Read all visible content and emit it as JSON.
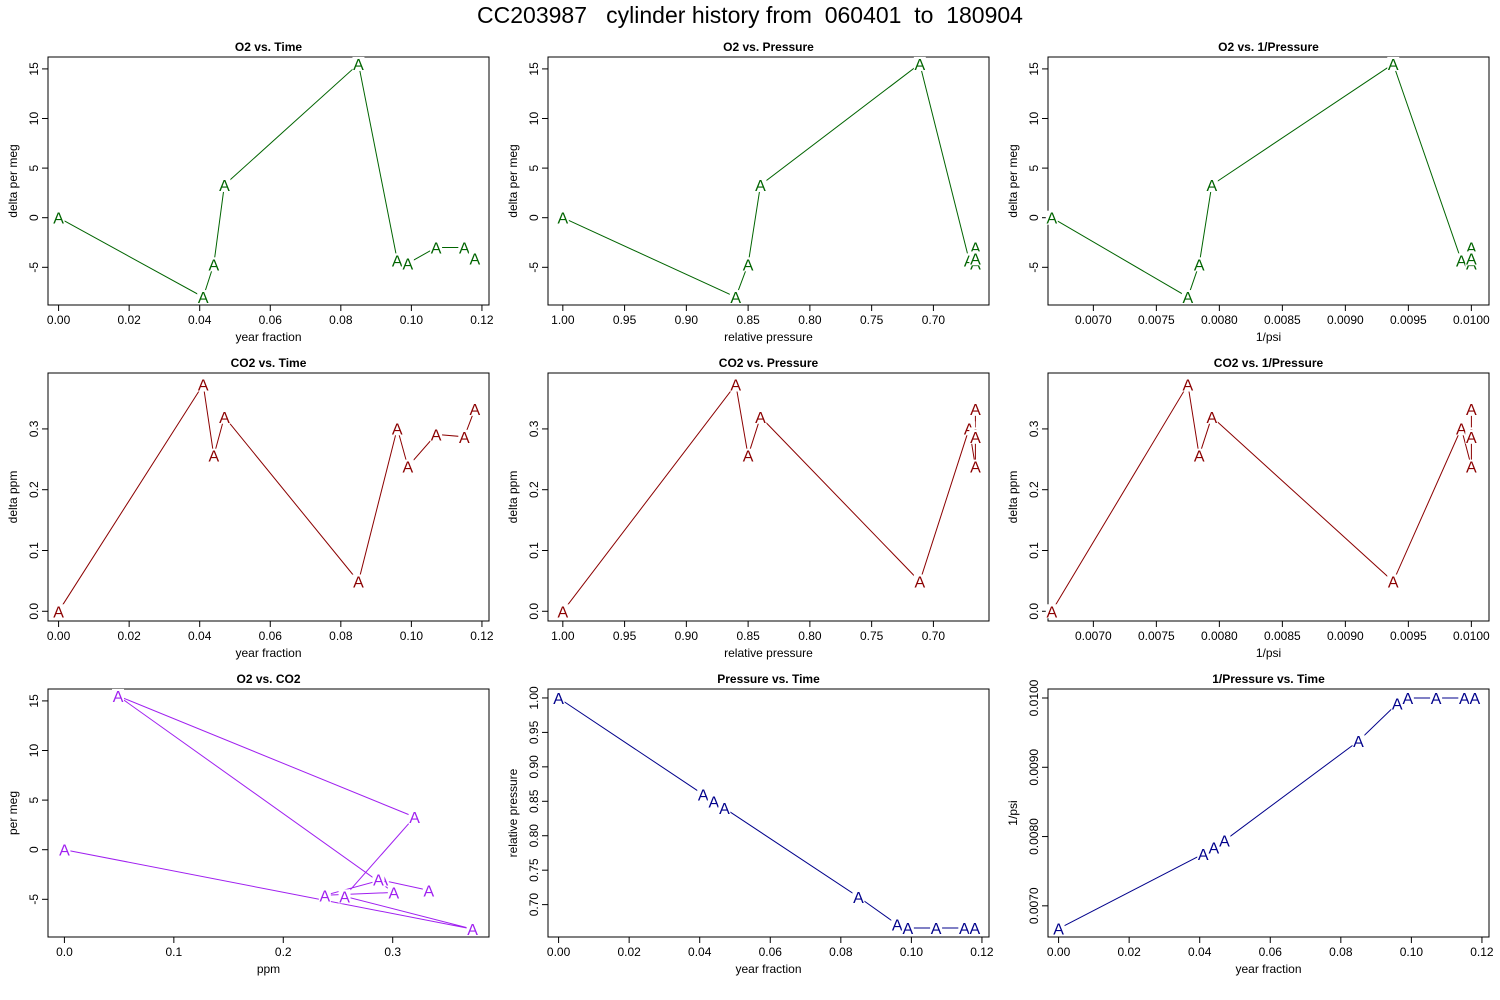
{
  "title": "CC203987   cylinder history from  060401  to  180904",
  "colors": {
    "o2": "#006400",
    "co2": "#8b0000",
    "o2co2": "#a020f0",
    "pressure": "#00008b"
  },
  "marker": "A",
  "chart_data": [
    {
      "type": "line",
      "title": "O2 vs. Time",
      "xlabel": "year fraction",
      "ylabel": "delta per meg",
      "color_key": "o2",
      "xlim": [
        -0.003,
        0.122
      ],
      "ylim": [
        -8.8,
        16.2
      ],
      "xticks": [
        0,
        0.02,
        0.04,
        0.06,
        0.08,
        0.1,
        0.12
      ],
      "xtick_labels": [
        "0.00",
        "0.02",
        "0.04",
        "0.06",
        "0.08",
        "0.10",
        "0.12"
      ],
      "yticks": [
        -5,
        0,
        5,
        10,
        15
      ],
      "ytick_labels": [
        "-5",
        "0",
        "5",
        "10",
        "15"
      ],
      "x": [
        0,
        0.041,
        0.044,
        0.047,
        0.085,
        0.096,
        0.099,
        0.107,
        0.115,
        0.118
      ],
      "y": [
        0,
        -8,
        -4.7,
        3.3,
        15.5,
        -4.3,
        -4.6,
        -3,
        -3,
        -4.1
      ]
    },
    {
      "type": "line",
      "title": "O2 vs. Pressure",
      "xlabel": "relative pressure",
      "ylabel": "delta per meg",
      "color_key": "o2",
      "x_reversed": true,
      "xlim": [
        1.012,
        0.655
      ],
      "ylim": [
        -8.8,
        16.2
      ],
      "xticks": [
        1.0,
        0.95,
        0.9,
        0.85,
        0.8,
        0.75,
        0.7
      ],
      "xtick_labels": [
        "1.00",
        "0.95",
        "0.90",
        "0.85",
        "0.80",
        "0.75",
        "0.70"
      ],
      "yticks": [
        -5,
        0,
        5,
        10,
        15
      ],
      "ytick_labels": [
        "-5",
        "0",
        "5",
        "10",
        "15"
      ],
      "x": [
        1.0,
        0.86,
        0.85,
        0.84,
        0.711,
        0.671,
        0.666,
        0.666,
        0.666,
        0.666
      ],
      "y": [
        0,
        -8,
        -4.7,
        3.3,
        15.5,
        -4.3,
        -4.6,
        -3,
        -3,
        -4.1
      ],
      "draw_order": [
        0,
        1,
        2,
        3,
        4,
        5,
        6,
        9,
        8,
        7
      ]
    },
    {
      "type": "line",
      "title": "O2 vs. 1/Pressure",
      "xlabel": "1/psi",
      "ylabel": "delta per meg",
      "color_key": "o2",
      "xlim": [
        0.00664,
        0.01014
      ],
      "ylim": [
        -8.8,
        16.2
      ],
      "xticks": [
        0.007,
        0.0075,
        0.008,
        0.0085,
        0.009,
        0.0095,
        0.01
      ],
      "xtick_labels": [
        "0.0070",
        "0.0075",
        "0.0080",
        "0.0085",
        "0.0090",
        "0.0095",
        "0.0100"
      ],
      "yticks": [
        -5,
        0,
        5,
        10,
        15
      ],
      "ytick_labels": [
        "-5",
        "0",
        "5",
        "10",
        "15"
      ],
      "x": [
        0.00667,
        0.00775,
        0.00784,
        0.00794,
        0.00938,
        0.00992,
        0.01,
        0.01,
        0.01,
        0.01
      ],
      "y": [
        0,
        -8,
        -4.7,
        3.3,
        15.5,
        -4.3,
        -4.6,
        -3,
        -3,
        -4.1
      ],
      "draw_order": [
        0,
        1,
        2,
        3,
        4,
        5,
        6,
        9,
        8,
        7
      ]
    },
    {
      "type": "line",
      "title": "CO2 vs. Time",
      "xlabel": "year fraction",
      "ylabel": "delta ppm",
      "color_key": "co2",
      "xlim": [
        -0.003,
        0.122
      ],
      "ylim": [
        -0.016,
        0.392
      ],
      "xticks": [
        0,
        0.02,
        0.04,
        0.06,
        0.08,
        0.1,
        0.12
      ],
      "xtick_labels": [
        "0.00",
        "0.02",
        "0.04",
        "0.06",
        "0.08",
        "0.10",
        "0.12"
      ],
      "yticks": [
        0,
        0.1,
        0.2,
        0.3
      ],
      "ytick_labels": [
        "0.0",
        "0.1",
        "0.2",
        "0.3"
      ],
      "x": [
        0,
        0.041,
        0.044,
        0.047,
        0.085,
        0.096,
        0.099,
        0.107,
        0.115,
        0.118
      ],
      "y": [
        0,
        0.373,
        0.256,
        0.32,
        0.049,
        0.301,
        0.238,
        0.291,
        0.287,
        0.333
      ]
    },
    {
      "type": "line",
      "title": "CO2 vs. Pressure",
      "xlabel": "relative pressure",
      "ylabel": "delta ppm",
      "color_key": "co2",
      "x_reversed": true,
      "xlim": [
        1.012,
        0.655
      ],
      "ylim": [
        -0.016,
        0.392
      ],
      "xticks": [
        1.0,
        0.95,
        0.9,
        0.85,
        0.8,
        0.75,
        0.7
      ],
      "xtick_labels": [
        "1.00",
        "0.95",
        "0.90",
        "0.85",
        "0.80",
        "0.75",
        "0.70"
      ],
      "yticks": [
        0,
        0.1,
        0.2,
        0.3
      ],
      "ytick_labels": [
        "0.0",
        "0.1",
        "0.2",
        "0.3"
      ],
      "x": [
        1.0,
        0.86,
        0.85,
        0.84,
        0.711,
        0.671,
        0.666,
        0.666,
        0.666,
        0.666
      ],
      "y": [
        0,
        0.373,
        0.256,
        0.32,
        0.049,
        0.301,
        0.238,
        0.291,
        0.287,
        0.333
      ],
      "draw_order": [
        0,
        1,
        2,
        3,
        4,
        5,
        6,
        9,
        8,
        7
      ]
    },
    {
      "type": "line",
      "title": "CO2 vs. 1/Pressure",
      "xlabel": "1/psi",
      "ylabel": "delta ppm",
      "color_key": "co2",
      "xlim": [
        0.00664,
        0.01014
      ],
      "ylim": [
        -0.016,
        0.392
      ],
      "xticks": [
        0.007,
        0.0075,
        0.008,
        0.0085,
        0.009,
        0.0095,
        0.01
      ],
      "xtick_labels": [
        "0.0070",
        "0.0075",
        "0.0080",
        "0.0085",
        "0.0090",
        "0.0095",
        "0.0100"
      ],
      "yticks": [
        0,
        0.1,
        0.2,
        0.3
      ],
      "ytick_labels": [
        "0.0",
        "0.1",
        "0.2",
        "0.3"
      ],
      "x": [
        0.00667,
        0.00775,
        0.00784,
        0.00794,
        0.00938,
        0.00992,
        0.01,
        0.01,
        0.01,
        0.01
      ],
      "y": [
        0,
        0.373,
        0.256,
        0.32,
        0.049,
        0.301,
        0.238,
        0.291,
        0.287,
        0.333
      ],
      "draw_order": [
        0,
        1,
        2,
        3,
        4,
        5,
        6,
        9,
        8,
        7
      ]
    },
    {
      "type": "line",
      "title": "O2 vs. CO2",
      "xlabel": "ppm",
      "ylabel": "per meg",
      "color_key": "o2co2",
      "xlim": [
        -0.015,
        0.388
      ],
      "ylim": [
        -8.8,
        16.2
      ],
      "xticks": [
        0,
        0.1,
        0.2,
        0.3
      ],
      "xtick_labels": [
        "0.0",
        "0.1",
        "0.2",
        "0.3"
      ],
      "yticks": [
        -5,
        0,
        5,
        10,
        15
      ],
      "ytick_labels": [
        "-5",
        "0",
        "5",
        "10",
        "15"
      ],
      "x": [
        0,
        0.373,
        0.256,
        0.32,
        0.049,
        0.301,
        0.238,
        0.291,
        0.287,
        0.333
      ],
      "y": [
        0,
        -8,
        -4.7,
        3.3,
        15.5,
        -4.3,
        -4.6,
        -3,
        -3,
        -4.1
      ]
    },
    {
      "type": "line",
      "title": "Pressure vs. Time",
      "xlabel": "year fraction",
      "ylabel": "relative pressure",
      "color_key": "pressure",
      "xlim": [
        -0.003,
        0.122
      ],
      "ylim": [
        0.653,
        1.013
      ],
      "xticks": [
        0,
        0.02,
        0.04,
        0.06,
        0.08,
        0.1,
        0.12
      ],
      "xtick_labels": [
        "0.00",
        "0.02",
        "0.04",
        "0.06",
        "0.08",
        "0.10",
        "0.12"
      ],
      "yticks": [
        0.7,
        0.75,
        0.8,
        0.85,
        0.9,
        0.95,
        1.0
      ],
      "ytick_labels": [
        "0.70",
        "0.75",
        "0.80",
        "0.85",
        "0.90",
        "0.95",
        "1.00"
      ],
      "x": [
        0,
        0.041,
        0.044,
        0.047,
        0.085,
        0.096,
        0.099,
        0.107,
        0.115,
        0.118
      ],
      "y": [
        1.0,
        0.86,
        0.85,
        0.84,
        0.711,
        0.671,
        0.666,
        0.666,
        0.666,
        0.666
      ]
    },
    {
      "type": "line",
      "title": "1/Pressure vs. Time",
      "xlabel": "year fraction",
      "ylabel": "1/psi",
      "color_key": "pressure",
      "xlim": [
        -0.003,
        0.122
      ],
      "ylim": [
        0.00655,
        0.01013
      ],
      "xticks": [
        0,
        0.02,
        0.04,
        0.06,
        0.08,
        0.1,
        0.12
      ],
      "xtick_labels": [
        "0.00",
        "0.02",
        "0.04",
        "0.06",
        "0.08",
        "0.10",
        "0.12"
      ],
      "yticks": [
        0.007,
        0.008,
        0.009,
        0.01
      ],
      "ytick_labels": [
        "0.0070",
        "0.0080",
        "0.0090",
        "0.0100"
      ],
      "x": [
        0,
        0.041,
        0.044,
        0.047,
        0.085,
        0.096,
        0.099,
        0.107,
        0.115,
        0.118
      ],
      "y": [
        0.00667,
        0.00775,
        0.00784,
        0.00794,
        0.00938,
        0.00992,
        0.01,
        0.01,
        0.01,
        0.01
      ]
    }
  ]
}
